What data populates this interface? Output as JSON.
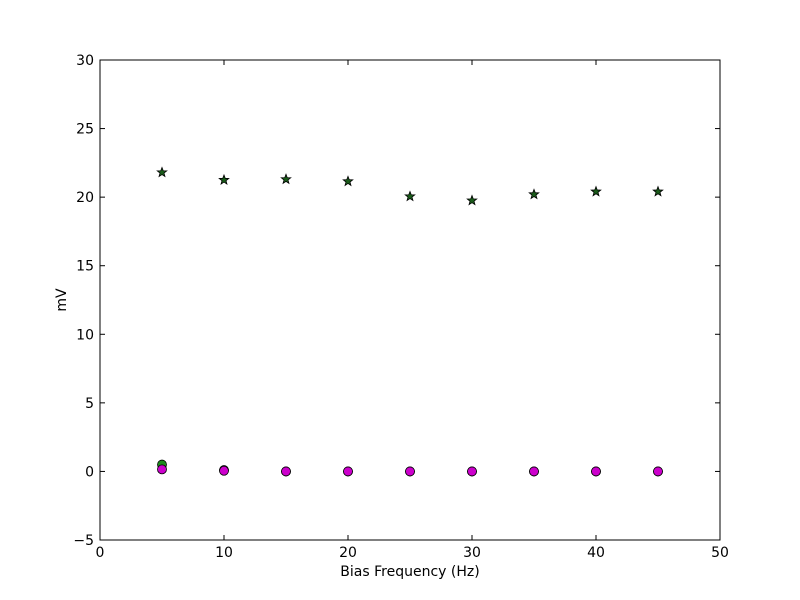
{
  "chart_data": {
    "type": "scatter",
    "title": "",
    "xlabel": "Bias Frequency (Hz)",
    "ylabel": "mV",
    "xlim": [
      0,
      50
    ],
    "ylim": [
      -5,
      30
    ],
    "xticks": [
      0,
      10,
      20,
      30,
      40,
      50
    ],
    "yticks": [
      -5,
      0,
      5,
      10,
      15,
      20,
      25,
      30
    ],
    "grid": false,
    "legend": "none",
    "series": [
      {
        "marker": "star",
        "color": "#1a5c1a",
        "x": [
          5,
          10,
          15,
          20,
          25,
          30,
          35,
          40,
          45
        ],
        "y": [
          21.8,
          21.25,
          21.3,
          21.15,
          20.05,
          19.75,
          20.2,
          20.4,
          20.4
        ]
      },
      {
        "marker": "circle",
        "color": "#1e8c1e",
        "x": [
          5,
          10,
          15,
          20,
          25,
          30,
          35,
          40,
          45
        ],
        "y": [
          0.5,
          0.1,
          0.0,
          0.0,
          0.0,
          0.0,
          0.0,
          0.0,
          0.0
        ]
      },
      {
        "marker": "circle",
        "color": "#cc00cc",
        "x": [
          5,
          10,
          15,
          20,
          25,
          30,
          35,
          40,
          45
        ],
        "y": [
          0.15,
          0.05,
          0.0,
          0.0,
          0.0,
          0.0,
          0.0,
          0.0,
          0.0
        ]
      }
    ]
  }
}
